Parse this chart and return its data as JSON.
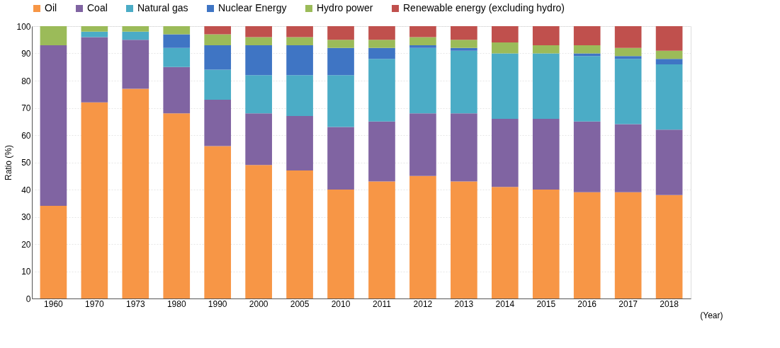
{
  "chart_data": {
    "type": "bar",
    "stacked": true,
    "xlabel": "(Year)",
    "ylabel": "Ratio (%)",
    "categories": [
      "1960",
      "1970",
      "1973",
      "1980",
      "1990",
      "2000",
      "2005",
      "2010",
      "2011",
      "2012",
      "2013",
      "2014",
      "2015",
      "2016",
      "2017",
      "2018"
    ],
    "ylim": [
      0,
      100
    ],
    "yticks": [
      0,
      10,
      20,
      30,
      40,
      50,
      60,
      70,
      80,
      90,
      100
    ],
    "grid": "y",
    "legend": "top",
    "series": [
      {
        "name": "Oil",
        "color": "#f79646",
        "values": [
          34,
          72,
          77,
          68,
          56,
          49,
          47,
          40,
          43,
          45,
          43,
          41,
          40,
          39,
          39,
          38
        ]
      },
      {
        "name": "Coal",
        "color": "#8064a2",
        "values": [
          59,
          24,
          18,
          17,
          17,
          19,
          20,
          23,
          22,
          23,
          25,
          25,
          26,
          26,
          25,
          24
        ]
      },
      {
        "name": "Natural gas",
        "color": "#4bacc6",
        "values": [
          0,
          2,
          3,
          7,
          11,
          14,
          15,
          19,
          23,
          24,
          23,
          24,
          24,
          24,
          24,
          24
        ]
      },
      {
        "name": "Nuclear Energy",
        "color": "#3f75c4",
        "values": [
          0,
          0,
          0,
          5,
          9,
          11,
          11,
          10,
          4,
          1,
          1,
          0,
          0,
          1,
          1,
          2
        ]
      },
      {
        "name": "Hydro power",
        "color": "#9bbb59",
        "values": [
          7,
          2,
          2,
          3,
          4,
          3,
          3,
          3,
          3,
          3,
          3,
          4,
          3,
          3,
          3,
          3
        ]
      },
      {
        "name": "Renewable energy (excluding hydro)",
        "color": "#c0504d",
        "values": [
          0,
          0,
          0,
          0,
          3,
          4,
          4,
          5,
          5,
          4,
          5,
          6,
          7,
          7,
          8,
          9
        ]
      }
    ]
  }
}
